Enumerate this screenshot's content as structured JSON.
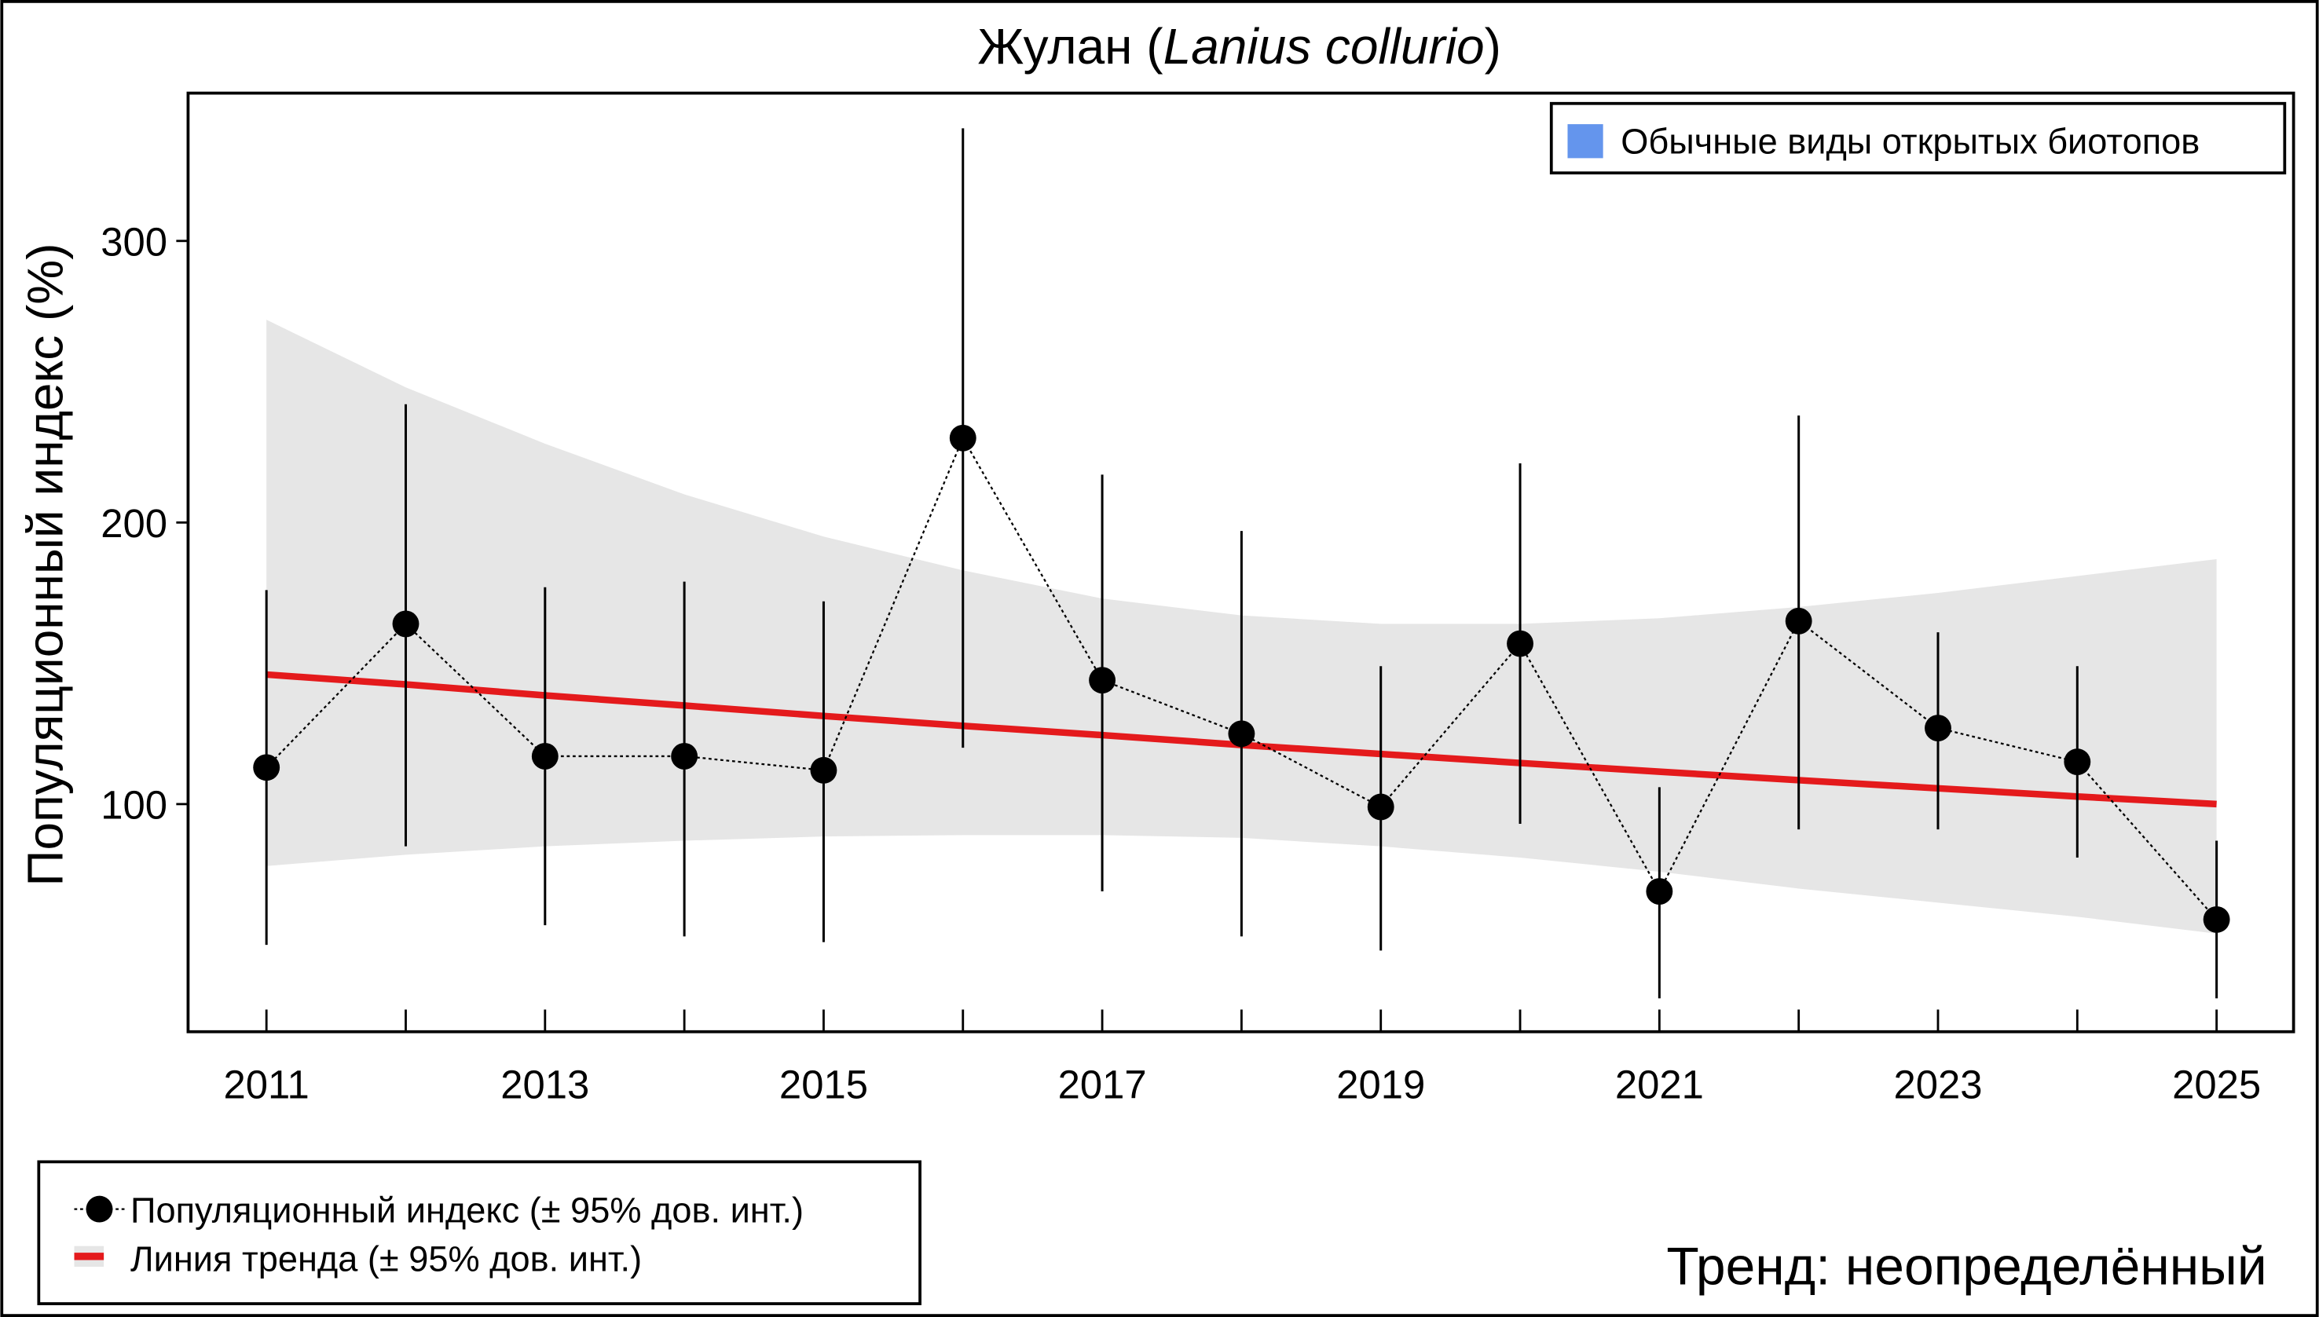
{
  "chart_data": {
    "type": "line",
    "title": {
      "common": "Жулан (",
      "latin": "Lanius collurio",
      "close": ")"
    },
    "ylabel": "Популяционный индекс (%)",
    "xlabel": "",
    "ylim": [
      0,
      350
    ],
    "yticks": [
      100,
      200,
      300
    ],
    "xticks_labeled": [
      2011,
      2013,
      2015,
      2017,
      2019,
      2021,
      2023,
      2025
    ],
    "x": [
      2011,
      2012,
      2013,
      2014,
      2015,
      2016,
      2017,
      2018,
      2019,
      2020,
      2021,
      2022,
      2023,
      2024,
      2025
    ],
    "series": [
      {
        "name": "Популяционный индекс (± 95% дов. инт.)",
        "values": [
          113,
          164,
          117,
          117,
          112,
          230,
          144,
          125,
          99,
          157,
          69,
          165,
          127,
          115,
          59
        ],
        "ci_upper": [
          176,
          242,
          177,
          179,
          172,
          340,
          217,
          197,
          149,
          221,
          106,
          238,
          161,
          149,
          87
        ],
        "ci_lower": [
          50,
          85,
          57,
          53,
          51,
          120,
          69,
          53,
          48,
          93,
          31,
          91,
          91,
          81,
          31
        ],
        "color": "#000000"
      },
      {
        "name": "Линия тренда (± 95% дов. инт.)",
        "values": [
          146,
          142.5,
          138.6,
          135,
          131.3,
          127.8,
          124.5,
          121,
          117.8,
          114.6,
          111.5,
          108.5,
          105.6,
          102.7,
          100
        ],
        "ci_upper": [
          272,
          248,
          228,
          210,
          195,
          183,
          173,
          167,
          164,
          164,
          166,
          170,
          175,
          181,
          187
        ],
        "ci_lower": [
          78,
          82,
          85,
          87,
          88.5,
          89,
          89,
          88,
          85,
          81,
          76,
          70,
          65,
          60,
          54
        ],
        "color": "#e41a1c",
        "band_color": "#e6e6e6"
      }
    ],
    "group_legend": {
      "label": "Обычные виды открытых биотопов",
      "color": "#6495ed",
      "position": "top-right"
    },
    "legend_position": "bottom-left",
    "trend_text": "Тренд: неопределённый",
    "grid": false
  }
}
